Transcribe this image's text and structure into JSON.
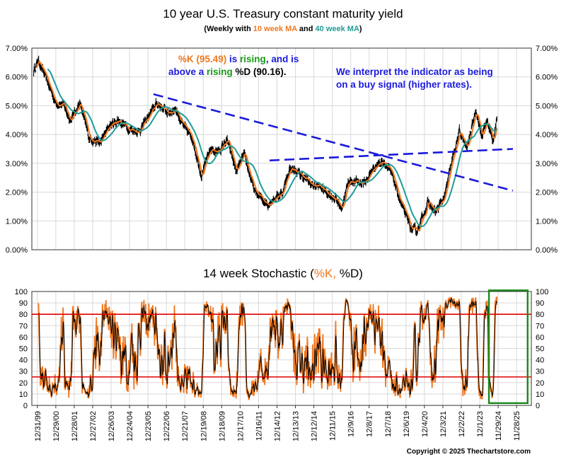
{
  "colors": {
    "price": "#000000",
    "ma10": "#f07820",
    "ma40": "#1f9c96",
    "k": "#f07820",
    "d": "#000000",
    "trend": "#1a1adc",
    "level_lines": "#e00000",
    "highlight_box": "#1a8a1a",
    "note_green": "#1a9a1a",
    "note_blue": "#1a1adc"
  },
  "chart_data": [
    {
      "type": "line",
      "title": "10 year U.S. Treasury constant maturity yield",
      "subtitle": {
        "prefix": "(Weekly with ",
        "ma10": "10 week MA",
        "and": " and ",
        "ma40": "40 week MA",
        "suffix": ")"
      },
      "ylim": [
        0,
        7
      ],
      "y_ticks": [
        "0.00%",
        "1.00%",
        "2.00%",
        "3.00%",
        "4.00%",
        "5.00%",
        "6.00%",
        "7.00%"
      ],
      "x_range": [
        1999.7,
        2026.8
      ],
      "anchors": {
        "x": [
          1999.8,
          2000.05,
          2000.5,
          2001.0,
          2001.4,
          2001.8,
          2002.3,
          2002.8,
          2003.4,
          2003.9,
          2004.4,
          2005.0,
          2005.5,
          2006.1,
          2006.5,
          2007.1,
          2007.5,
          2007.9,
          2008.4,
          2008.9,
          2009.4,
          2009.8,
          2010.3,
          2010.8,
          2011.2,
          2011.8,
          2012.5,
          2013.3,
          2013.7,
          2014.3,
          2014.9,
          2015.3,
          2015.7,
          2016.2,
          2016.5,
          2016.9,
          2017.3,
          2017.8,
          2018.3,
          2018.8,
          2019.3,
          2019.7,
          2020.3,
          2020.6,
          2021.2,
          2021.6,
          2022.1,
          2022.5,
          2022.9,
          2023.3,
          2023.8,
          2024.1,
          2024.4,
          2024.7,
          2024.95
        ],
        "y": [
          6.2,
          6.6,
          5.9,
          5.1,
          5.05,
          4.5,
          5.1,
          3.9,
          3.7,
          4.3,
          4.5,
          4.2,
          4.1,
          4.7,
          5.1,
          4.75,
          4.9,
          4.3,
          3.9,
          2.6,
          3.5,
          3.4,
          3.8,
          2.7,
          3.3,
          2.0,
          1.6,
          2.0,
          2.85,
          2.6,
          2.25,
          2.2,
          2.0,
          1.75,
          1.45,
          2.4,
          2.35,
          2.35,
          2.9,
          3.1,
          2.5,
          1.65,
          0.7,
          0.65,
          1.65,
          1.3,
          1.85,
          3.1,
          4.1,
          3.5,
          4.9,
          3.9,
          4.5,
          3.75,
          4.65
        ]
      },
      "ma10_last_x": 2024.95,
      "ma40_last_x": 2024.9,
      "trendlines": [
        {
          "x": [
            2006.3,
            2025.8
          ],
          "y": [
            5.4,
            2.05
          ]
        },
        {
          "x": [
            2012.6,
            2025.8
          ],
          "y": [
            3.1,
            3.5
          ]
        }
      ],
      "notes": {
        "left_line1": [
          {
            "text": "%K (95.49)",
            "color": "#f07820"
          },
          {
            "text": " is ",
            "color": "#1a1adc"
          },
          {
            "text": "rising",
            "color": "#1a9a1a"
          },
          {
            "text": ", and is",
            "color": "#1a1adc"
          }
        ],
        "left_line2": [
          {
            "text": "above a ",
            "color": "#1a1adc"
          },
          {
            "text": "rising",
            "color": "#1a9a1a"
          },
          {
            "text": " %D (90.16).",
            "color": "#000000"
          }
        ],
        "right_line1": "We interpret the indicator as being",
        "right_line2": "on a buy signal (higher rates)."
      }
    },
    {
      "type": "line",
      "title": {
        "prefix": "14 week Stochastic (",
        "k": "%K,",
        "space": " ",
        "d": "%D",
        "suffix": ")"
      },
      "ylim": [
        0,
        100
      ],
      "y_ticks": [
        "0",
        "10",
        "20",
        "30",
        "40",
        "50",
        "60",
        "70",
        "80",
        "90",
        "100"
      ],
      "levels": [
        80,
        25
      ],
      "k_last": 95.49,
      "d_last": 90.16,
      "highlight": {
        "x": [
          2024.5,
          2026.6
        ],
        "y": [
          2,
          101
        ]
      },
      "x_ticks": [
        "12/31/99",
        "12/29/00",
        "12/28/01",
        "12/27/02",
        "12/26/03",
        "12/24/04",
        "12/23/05",
        "12/22/06",
        "12/21/07",
        "12/19/08",
        "12/18/09",
        "12/17/10",
        "12/16/11",
        "12/14/12",
        "12/13/13",
        "12/12/14",
        "12/11/15",
        "12/9/16",
        "12/8/17",
        "12/7/18",
        "12/6/19",
        "12/4/20",
        "12/3/21",
        "12/2/22",
        "12/1/23",
        "11/29/24",
        "11/28/25"
      ],
      "x_tick_values": [
        2000.0,
        2001.0,
        2002.0,
        2003.0,
        2004.0,
        2005.0,
        2006.0,
        2007.0,
        2008.0,
        2009.0,
        2010.0,
        2011.0,
        2012.0,
        2013.0,
        2014.0,
        2015.0,
        2016.0,
        2017.0,
        2018.0,
        2019.0,
        2020.0,
        2021.0,
        2022.0,
        2023.0,
        2024.0,
        2025.0,
        2026.0
      ]
    }
  ],
  "copyright": "Copyright © 2025 Thechartstore.com"
}
